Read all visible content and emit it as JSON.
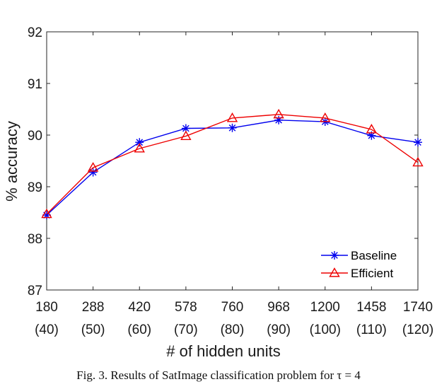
{
  "top_fragment": "",
  "caption": "Fig. 3.   Results of SatImage classification problem for τ = 4",
  "chart_data": {
    "type": "line",
    "title": "",
    "xlabel": "# of hidden units",
    "ylabel": "% accuracy",
    "categories": [
      "180",
      "288",
      "420",
      "578",
      "760",
      "968",
      "1200",
      "1458",
      "1740"
    ],
    "sub_categories": [
      "(40)",
      "(50)",
      "(60)",
      "(70)",
      "(80)",
      "(90)",
      "(100)",
      "(110)",
      "(120)"
    ],
    "ylim": [
      87,
      92
    ],
    "yticks": [
      "87",
      "88",
      "89",
      "90",
      "91",
      "92"
    ],
    "grid": false,
    "legend_position": "bottom-right",
    "series": [
      {
        "name": "Baseline",
        "color": "#0000ee",
        "marker": "asterisk",
        "values": [
          88.45,
          89.28,
          89.86,
          90.13,
          90.14,
          90.29,
          90.26,
          89.99,
          89.86
        ]
      },
      {
        "name": "Efficient",
        "color": "#ee0000",
        "marker": "triangle",
        "values": [
          88.47,
          89.37,
          89.74,
          89.98,
          90.33,
          90.4,
          90.33,
          90.11,
          89.47
        ]
      }
    ]
  }
}
